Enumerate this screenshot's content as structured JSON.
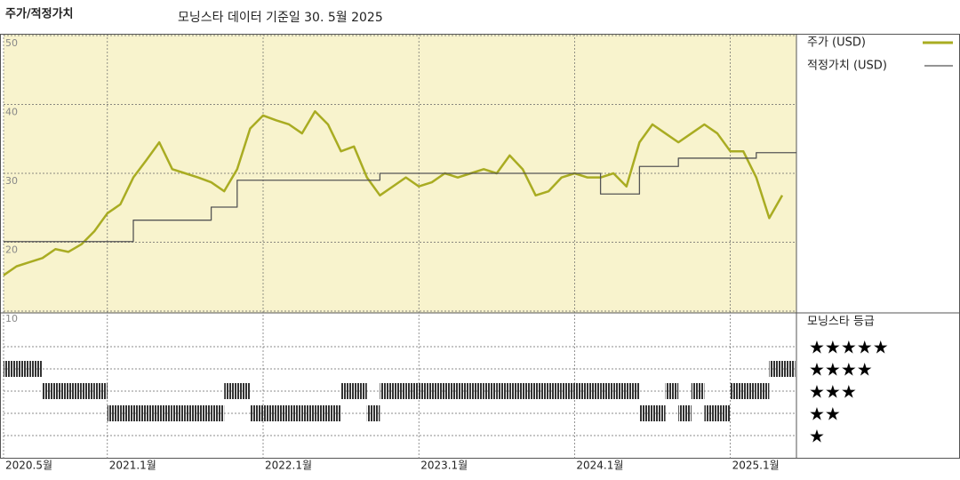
{
  "chart_data": {
    "type": "line",
    "title": "주가/적정가치",
    "subtitle": "모닝스타 데이터 기준일 30. 5월 2025",
    "x": [
      "2020-05",
      "2020-06",
      "2020-07",
      "2020-08",
      "2020-09",
      "2020-10",
      "2020-11",
      "2020-12",
      "2021-01",
      "2021-02",
      "2021-03",
      "2021-04",
      "2021-05",
      "2021-06",
      "2021-07",
      "2021-08",
      "2021-09",
      "2021-10",
      "2021-11",
      "2021-12",
      "2022-01",
      "2022-02",
      "2022-03",
      "2022-04",
      "2022-05",
      "2022-06",
      "2022-07",
      "2022-08",
      "2022-09",
      "2022-10",
      "2022-11",
      "2022-12",
      "2023-01",
      "2023-02",
      "2023-03",
      "2023-04",
      "2023-05",
      "2023-06",
      "2023-07",
      "2023-08",
      "2023-09",
      "2023-10",
      "2023-11",
      "2023-12",
      "2024-01",
      "2024-02",
      "2024-03",
      "2024-04",
      "2024-05",
      "2024-06",
      "2024-07",
      "2024-08",
      "2024-09",
      "2024-10",
      "2024-11",
      "2024-12",
      "2025-01",
      "2025-02",
      "2025-03",
      "2025-04",
      "2025-05"
    ],
    "xticks": [
      {
        "value": "2020-05",
        "label": "2020.5월"
      },
      {
        "value": "2021-01",
        "label": "2021.1월"
      },
      {
        "value": "2022-01",
        "label": "2022.1월"
      },
      {
        "value": "2023-01",
        "label": "2023.1월"
      },
      {
        "value": "2024-01",
        "label": "2024.1월"
      },
      {
        "value": "2025-01",
        "label": "2025.1월"
      }
    ],
    "ylim": [
      10,
      50
    ],
    "yticks": [
      10,
      20,
      30,
      40,
      50
    ],
    "grid": true,
    "series": [
      {
        "name": "주가 (USD)",
        "color": "#a9ac22",
        "values": [
          15.2,
          16.5,
          17.1,
          17.7,
          19,
          18.6,
          19.7,
          21.6,
          24.2,
          25.5,
          29.4,
          31.9,
          34.5,
          30.6,
          30,
          29.4,
          28.7,
          27.4,
          30.6,
          36.5,
          38.4,
          37.7,
          37.1,
          35.8,
          39,
          37.1,
          33.2,
          33.9,
          29.4,
          26.8,
          28.1,
          29.4,
          28.1,
          28.7,
          30,
          29.4,
          30,
          30.6,
          30,
          32.6,
          30.6,
          26.8,
          27.4,
          29.4,
          30,
          29.4,
          29.4,
          30,
          28.1,
          34.5,
          37.1,
          35.8,
          34.5,
          35.8,
          37.1,
          35.8,
          33.2,
          33.2,
          29.4,
          23.5,
          26.8
        ]
      },
      {
        "name": "적정가치 (USD)",
        "color": "#555555",
        "step": true,
        "values": [
          20.1,
          20.1,
          20.1,
          20.1,
          20.1,
          20.1,
          20.1,
          20.1,
          20.1,
          20.1,
          23.2,
          23.2,
          23.2,
          23.2,
          23.2,
          23.2,
          25.1,
          25.1,
          29,
          29,
          29,
          29,
          29,
          29,
          29,
          29,
          29,
          29,
          29,
          30,
          30,
          30,
          30,
          30,
          30,
          30,
          30,
          30,
          30,
          30,
          30,
          30,
          30,
          30,
          30,
          30,
          27,
          27,
          27,
          31,
          31,
          31,
          32.2,
          32.2,
          32.2,
          32.2,
          32.2,
          32.2,
          33,
          33,
          33
        ]
      }
    ],
    "rating": {
      "name": "모닝스타 등급",
      "color": "#333333",
      "labels": [
        "★★★★★",
        "★★★★",
        "★★★",
        "★★",
        "★"
      ],
      "values": [
        4,
        4,
        4,
        3,
        3,
        3,
        3,
        3,
        2,
        2,
        2,
        2,
        2,
        2,
        2,
        2,
        2,
        3,
        3,
        2,
        2,
        2,
        2,
        2,
        2,
        2,
        3,
        3,
        2,
        3,
        3,
        3,
        3,
        3,
        3,
        3,
        3,
        3,
        3,
        3,
        3,
        3,
        3,
        3,
        3,
        3,
        3,
        3,
        3,
        2,
        2,
        3,
        2,
        3,
        2,
        2,
        3,
        3,
        3,
        4,
        4
      ]
    }
  }
}
